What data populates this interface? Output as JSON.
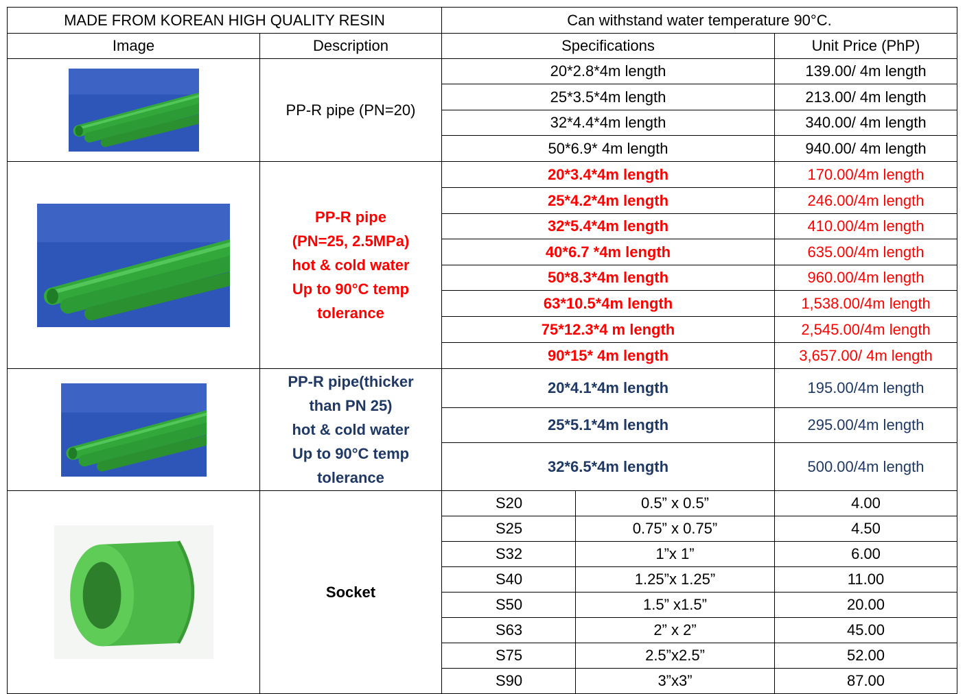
{
  "table": {
    "banner": [
      "MADE FROM KOREAN HIGH QUALITY RESIN",
      "Can withstand water temperature 90°C."
    ],
    "columns": [
      "Image",
      "Description",
      "Specifications",
      "Unit Price (PhP)"
    ],
    "groups": [
      {
        "description": [
          "PP-R pipe (PN=20)"
        ],
        "rows": [
          [
            "20*2.8*4m length",
            "139.00/ 4m length"
          ],
          [
            "25*3.5*4m length",
            "213.00/ 4m length"
          ],
          [
            "32*4.4*4m length",
            "340.00/ 4m length"
          ],
          [
            "50*6.9* 4m length",
            "940.00/ 4m length"
          ]
        ]
      },
      {
        "description": [
          "PP-R pipe",
          "(PN=25, 2.5MPa)",
          "hot & cold water",
          "Up to 90°C temp",
          "tolerance"
        ],
        "rows": [
          [
            "20*3.4*4m length",
            "170.00/4m length"
          ],
          [
            "25*4.2*4m length",
            "246.00/4m length"
          ],
          [
            "32*5.4*4m length",
            "410.00/4m length"
          ],
          [
            "40*6.7 *4m length",
            "635.00/4m length"
          ],
          [
            "50*8.3*4m length",
            "960.00/4m length"
          ],
          [
            "63*10.5*4m length",
            "1,538.00/4m length"
          ],
          [
            "75*12.3*4 m length",
            "2,545.00/4m length"
          ],
          [
            "90*15* 4m length",
            "3,657.00/ 4m length"
          ]
        ]
      },
      {
        "description": [
          "PP-R pipe(thicker",
          "than PN 25)",
          "hot & cold water",
          "Up to 90°C temp",
          "tolerance"
        ],
        "rows": [
          [
            "20*4.1*4m length",
            "195.00/4m length"
          ],
          [
            "25*5.1*4m length",
            "295.00/4m length"
          ],
          [
            "32*6.5*4m length",
            "500.00/4m length"
          ]
        ]
      },
      {
        "description": [
          "Socket"
        ],
        "rows": [
          [
            "S20",
            "0.5” x 0.5”",
            "4.00"
          ],
          [
            "S25",
            "0.75” x 0.75”",
            "4.50"
          ],
          [
            "S32",
            "1”x 1”",
            "6.00"
          ],
          [
            "S40",
            "1.25”x 1.25”",
            "11.00"
          ],
          [
            "S50",
            "1.5” x1.5”",
            "20.00"
          ],
          [
            "S63",
            "2” x 2”",
            "45.00"
          ],
          [
            "S75",
            "2.5”x2.5”",
            "52.00"
          ],
          [
            "S90",
            "3”x3”",
            "87.00"
          ]
        ]
      }
    ]
  }
}
